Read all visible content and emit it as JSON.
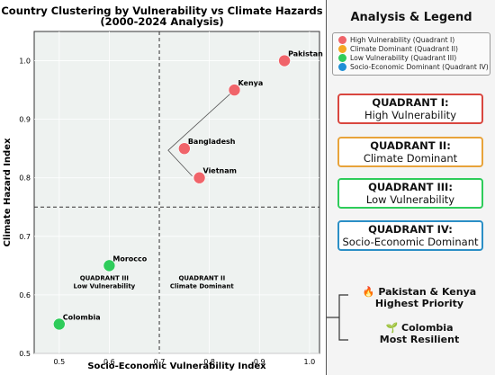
{
  "chart_data": {
    "type": "scatter",
    "title": "Country Clustering by Vulnerability vs Climate Hazards\n(2000-2024 Analysis)",
    "xlabel": "Socio-Economic Vulnerability Index",
    "ylabel": "Climate Hazard Index",
    "xlim": [
      0.45,
      1.02
    ],
    "ylim": [
      0.5,
      1.05
    ],
    "xticks": [
      0.5,
      0.6,
      0.7,
      0.8,
      0.9,
      1.0
    ],
    "yticks": [
      0.5,
      0.6,
      0.7,
      0.8,
      0.9,
      1.0
    ],
    "grid": true,
    "divider_x": 0.7,
    "divider_y": 0.75,
    "points": [
      {
        "label": "Pakistan",
        "x": 0.95,
        "y": 1.0,
        "color": "#f0646a"
      },
      {
        "label": "Kenya",
        "x": 0.85,
        "y": 0.95,
        "color": "#f0646a"
      },
      {
        "label": "Bangladesh",
        "x": 0.75,
        "y": 0.85,
        "color": "#f0646a"
      },
      {
        "label": "Vietnam",
        "x": 0.78,
        "y": 0.8,
        "color": "#f0646a"
      },
      {
        "label": "Morocco",
        "x": 0.6,
        "y": 0.65,
        "color": "#2ecc5a"
      },
      {
        "label": "Colombia",
        "x": 0.5,
        "y": 0.55,
        "color": "#2ecc5a"
      }
    ],
    "annotations": [
      {
        "lines": [
          "QUADRANT III",
          "Low Vulnerability"
        ],
        "x": 0.59,
        "y": 0.625
      },
      {
        "lines": [
          "QUADRANT II",
          "Climate Dominant"
        ],
        "x": 0.785,
        "y": 0.625
      }
    ]
  },
  "panel": {
    "title": "Analysis & Legend",
    "legend": [
      {
        "label": "High Vulnerability (Quadrant I)",
        "color": "#f0646a"
      },
      {
        "label": "Climate Dominant (Quadrant II)",
        "color": "#f5a623"
      },
      {
        "label": "Low Vulnerability (Quadrant III)",
        "color": "#2ecc5a"
      },
      {
        "label": "Socio-Economic Dominant (Quadrant IV)",
        "color": "#1f8fd6"
      }
    ],
    "quadrants": [
      {
        "title": "QUADRANT I:",
        "subtitle": "High Vulnerability",
        "color": "#d9463f"
      },
      {
        "title": "QUADRANT II:",
        "subtitle": "Climate Dominant",
        "color": "#e8a33a"
      },
      {
        "title": "QUADRANT III:",
        "subtitle": "Low Vulnerability",
        "color": "#2ecc5a"
      },
      {
        "title": "QUADRANT IV:",
        "subtitle": "Socio-Economic Dominant",
        "color": "#2b8fc6"
      }
    ],
    "priority": {
      "icon": "🔥",
      "line1": "Pakistan & Kenya",
      "line2": "Highest Priority"
    },
    "resilient": {
      "icon": "🌱",
      "line1": "Colombia",
      "line2": "Most Resilient"
    }
  }
}
